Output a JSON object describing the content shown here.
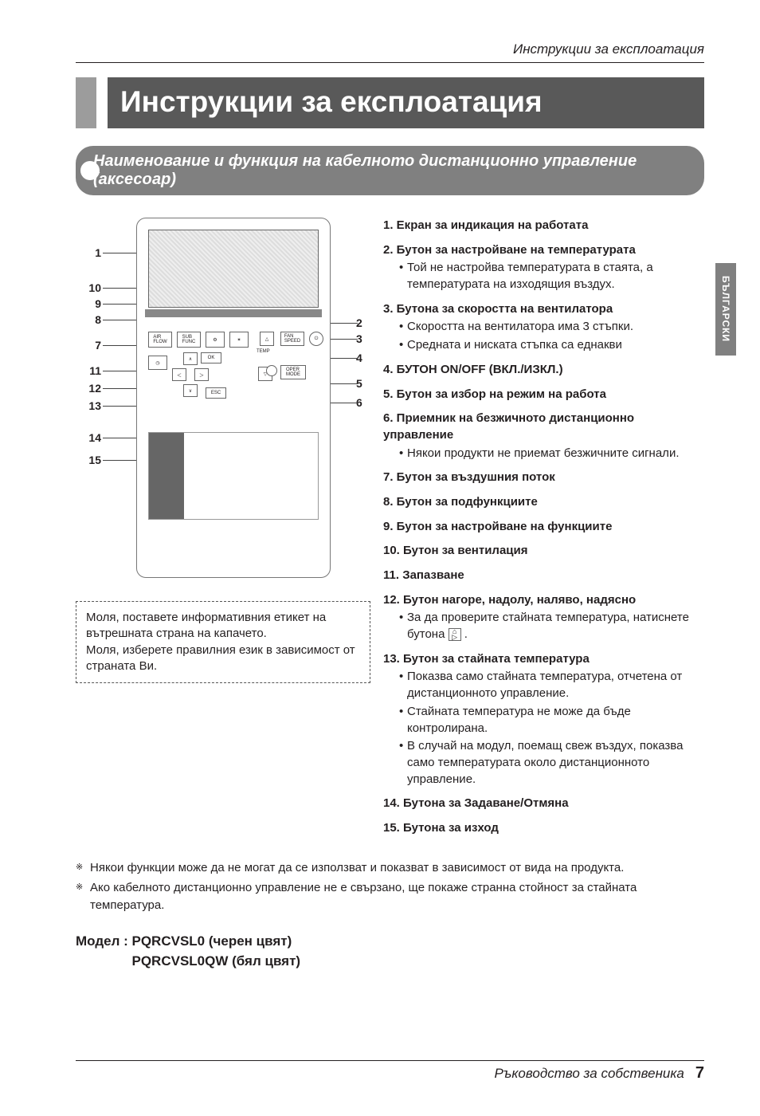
{
  "header": {
    "running": "Инструкции за експлоатация"
  },
  "title": "Инструкции за експлоатация",
  "subtitle": "Наименование и функция на кабелното дистанционно управление (аксесоар)",
  "sidetab": "БЪЛГАРСКИ",
  "leads_left": [
    "1",
    "10",
    "9",
    "8",
    "7",
    "11",
    "12",
    "13",
    "14",
    "15"
  ],
  "leads_right": [
    "2",
    "3",
    "4",
    "5",
    "6"
  ],
  "note_box": {
    "l1": "Моля, поставете информативния етикет на вътрешната страна на капачето.",
    "l2": "Моля, изберете правилния език в зависимост от страната Ви."
  },
  "items": [
    {
      "n": "1.",
      "t": "Екран за индикация на работата",
      "sub": []
    },
    {
      "n": "2.",
      "t": "Бутон за настройване на температурата",
      "sub": [
        "Той не настройва температурата в стаята, а температурата на изходящия въздух."
      ]
    },
    {
      "n": "3.",
      "t": "Бутона за скоростта на вентилатора",
      "sub": [
        "Скоростта на вентилатора има 3 стъпки.",
        "Средната и ниската стъпка са еднакви"
      ]
    },
    {
      "n": "4.",
      "t": "БУТОН ON/OFF (ВКЛ./ИЗКЛ.)",
      "sub": []
    },
    {
      "n": "5.",
      "t": "Бутон за избор на режим на работа",
      "sub": []
    },
    {
      "n": "6.",
      "t": "Приемник на безжичното дистанционно управление",
      "sub": [
        "Някои продукти не приемат безжичните сигнали."
      ]
    },
    {
      "n": "7.",
      "t": "Бутон за въздушния поток",
      "sub": []
    },
    {
      "n": "8.",
      "t": "Бутон за подфункциите",
      "sub": []
    },
    {
      "n": "9.",
      "t": "Бутон за настройване на функциите",
      "sub": []
    },
    {
      "n": "10.",
      "t": "Бутон за вентилация",
      "sub": []
    },
    {
      "n": "11.",
      "t": "Запазване",
      "sub": []
    },
    {
      "n": "12.",
      "t": "Бутон нагоре, надолу, наляво, надясно",
      "sub": [
        "За да проверите стайната температура, натиснете бутона __ICON__ ."
      ]
    },
    {
      "n": "13.",
      "t": "Бутон за стайната температура",
      "sub": [
        "Показва само стайната температура, отчетена от дистанционното управление.",
        "Стайната температура не може да бъде контролирана.",
        "В случай на модул, поемащ свеж въздух, показва само температурата около дистанционното управление."
      ]
    },
    {
      "n": "14.",
      "t": "Бутона за Задаване/Отмяна",
      "sub": []
    },
    {
      "n": "15.",
      "t": "Бутона за изход",
      "sub": []
    }
  ],
  "footnotes": [
    "Някои функции може да не могат да се използват и показват в зависимост от вида на продукта.",
    "Ако кабелното дистанционно управление не е свързано, ще покаже странна стойност за стайната температура."
  ],
  "models": {
    "label": "Модел :",
    "l1": "PQRCVSL0 (черен цвят)",
    "l2": "PQRCVSL0QW (бял цвят)"
  },
  "footer": {
    "text": "Ръководство за собственика",
    "page": "7"
  },
  "colors": {
    "title_bg": "#595959",
    "accent": "#9c9c9c",
    "pill": "#808080",
    "text": "#231f20"
  }
}
